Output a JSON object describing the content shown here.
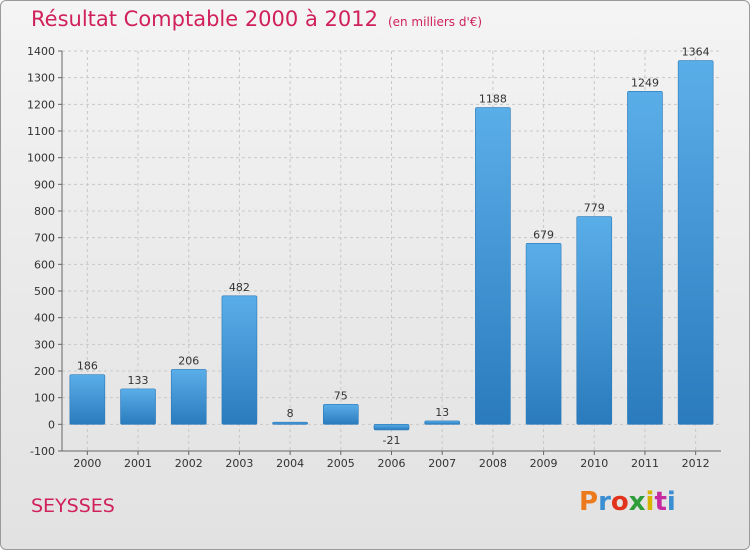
{
  "header": {
    "title": "Résultat Comptable 2000 à 2012",
    "unit": "(en milliers d'€)"
  },
  "footer": {
    "city": "SEYSSES",
    "logo": "Proxiti",
    "logo_colors": [
      "#ec7a1c",
      "#3a8ed1",
      "#e0321c",
      "#2f9e3a",
      "#d8b400",
      "#c52aa0",
      "#3a8ed1"
    ]
  },
  "chart_data": {
    "type": "bar",
    "title": "Résultat Comptable 2000 à 2012",
    "xlabel": "",
    "ylabel": "",
    "categories": [
      "2000",
      "2001",
      "2002",
      "2003",
      "2004",
      "2005",
      "2006",
      "2007",
      "2008",
      "2009",
      "2010",
      "2011",
      "2012"
    ],
    "values": [
      186,
      133,
      206,
      482,
      8,
      75,
      -21,
      13,
      1188,
      679,
      779,
      1249,
      1364
    ],
    "ylim": [
      -100,
      1400
    ],
    "yticks": [
      -100,
      0,
      100,
      200,
      300,
      400,
      500,
      600,
      700,
      800,
      900,
      1000,
      1100,
      1200,
      1300,
      1400
    ],
    "grid": true,
    "legend": "none",
    "colors": {
      "bar_light": "#5aaee8",
      "bar_dark": "#2a7bbd",
      "grid": "#c8c8c8"
    }
  }
}
